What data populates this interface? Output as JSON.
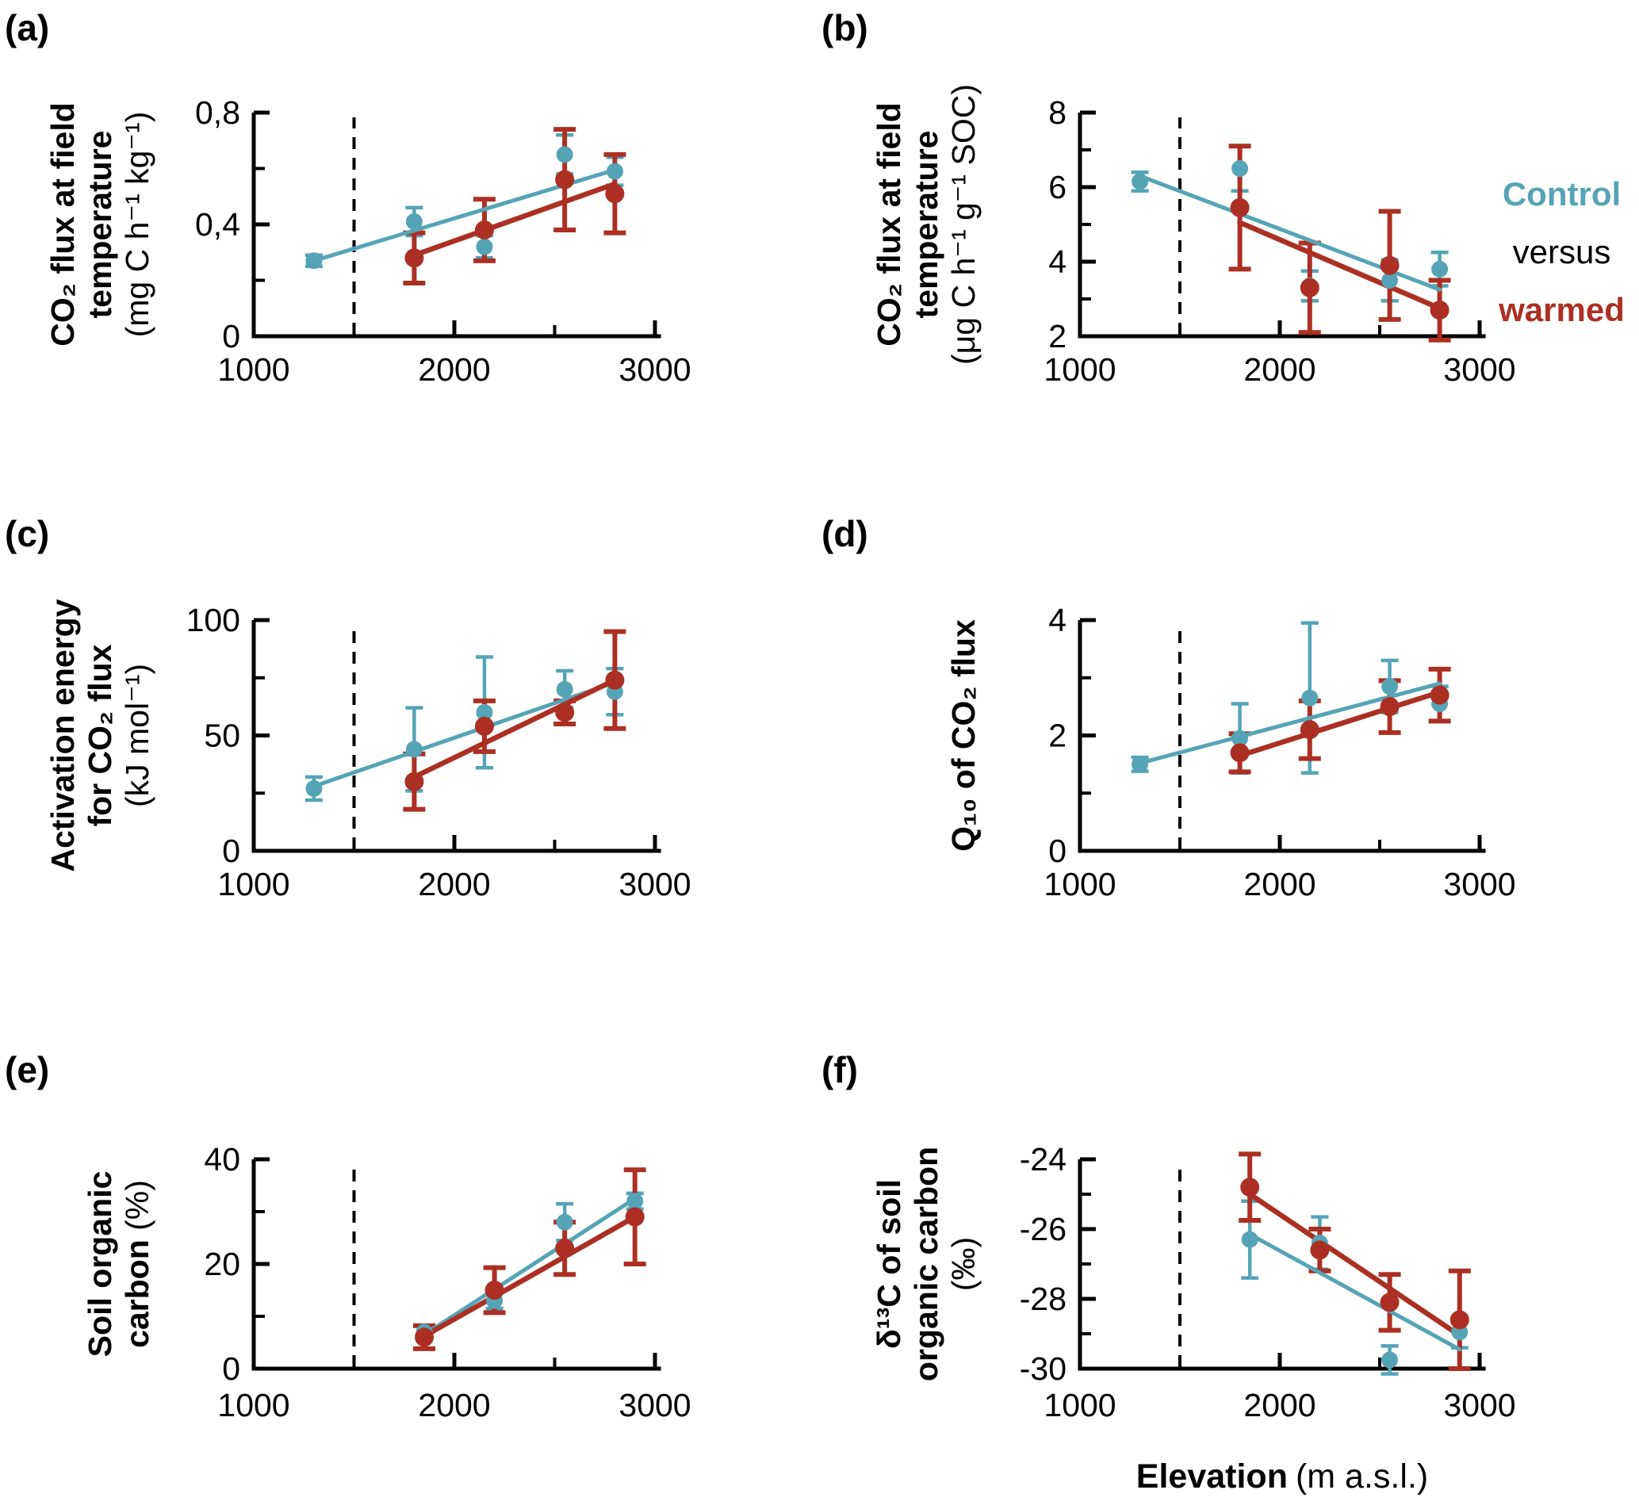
{
  "figure": {
    "legend": {
      "control_label": "Control",
      "versus_label": "versus",
      "warmed_label": "warmed"
    },
    "colors": {
      "control": "#55A4B6",
      "warmed": "#AB3023",
      "axis": "#000000"
    },
    "x_axis": {
      "title_bold": "Elevation",
      "title_unit": "(m a.s.l.)",
      "major_ticks": [
        1000,
        2000,
        3000
      ],
      "tick_labels": [
        "1000",
        "2000",
        "3000"
      ],
      "minor_ticks": [
        1500,
        2500
      ],
      "dashed_reference_x": 1500,
      "xlim": [
        1000,
        3030
      ]
    }
  },
  "chart_data": [
    {
      "panel_key": "a",
      "panel_label": "(a)",
      "type": "scatter",
      "ylabel_lines": [
        {
          "parts": [
            {
              "text": "CO₂ flux at field",
              "bold": true
            }
          ]
        },
        {
          "parts": [
            {
              "text": "temperature",
              "bold": true
            }
          ]
        },
        {
          "parts": [
            {
              "text": "(mg C h⁻¹ kg⁻¹)",
              "bold": false
            }
          ]
        }
      ],
      "ylim": [
        0,
        0.8
      ],
      "yticks": [
        {
          "value": 0,
          "label": "0"
        },
        {
          "value": 0.4,
          "label": "0,4"
        },
        {
          "value": 0.8,
          "label": "0,8"
        }
      ],
      "yminor": [
        0.2,
        0.6
      ],
      "series": [
        {
          "name": "Control",
          "color_key": "control",
          "x": [
            1300,
            1800,
            2150,
            2550,
            2800
          ],
          "y": [
            0.27,
            0.41,
            0.32,
            0.65,
            0.59
          ],
          "yerr": [
            0.02,
            0.05,
            0.04,
            0.07,
            0.05
          ],
          "trend": {
            "x": [
              1300,
              2800
            ],
            "y": [
              0.27,
              0.595
            ]
          }
        },
        {
          "name": "warmed",
          "color_key": "warmed",
          "x": [
            1800,
            2150,
            2550,
            2800
          ],
          "y": [
            0.28,
            0.38,
            0.56,
            0.51
          ],
          "yerr": [
            0.09,
            0.11,
            0.18,
            0.14
          ],
          "trend": {
            "x": [
              1800,
              2800
            ],
            "y": [
              0.29,
              0.545
            ]
          }
        }
      ]
    },
    {
      "panel_key": "b",
      "panel_label": "(b)",
      "type": "scatter",
      "ylabel_lines": [
        {
          "parts": [
            {
              "text": "CO₂ flux at field",
              "bold": true
            }
          ]
        },
        {
          "parts": [
            {
              "text": "temperature",
              "bold": true
            }
          ]
        },
        {
          "parts": [
            {
              "text": "(μg C h⁻¹ g⁻¹ SOC)",
              "bold": false
            }
          ]
        }
      ],
      "ylim": [
        2,
        8
      ],
      "yticks": [
        {
          "value": 2,
          "label": "2"
        },
        {
          "value": 4,
          "label": "4"
        },
        {
          "value": 6,
          "label": "6"
        },
        {
          "value": 8,
          "label": "8"
        }
      ],
      "yminor": [
        3,
        5,
        7
      ],
      "series": [
        {
          "name": "Control",
          "color_key": "control",
          "x": [
            1300,
            1800,
            2150,
            2550,
            2800
          ],
          "y": [
            6.15,
            6.5,
            3.35,
            3.5,
            3.8
          ],
          "yerr": [
            0.25,
            0.6,
            0.4,
            0.55,
            0.45
          ],
          "trend": {
            "x": [
              1300,
              2800
            ],
            "y": [
              6.3,
              3.25
            ]
          }
        },
        {
          "name": "warmed",
          "color_key": "warmed",
          "x": [
            1800,
            2150,
            2550,
            2800
          ],
          "y": [
            5.45,
            3.3,
            3.9,
            2.7
          ],
          "yerr": [
            1.65,
            1.2,
            1.45,
            0.8
          ],
          "trend": {
            "x": [
              1800,
              2800
            ],
            "y": [
              5.05,
              2.75
            ]
          }
        }
      ]
    },
    {
      "panel_key": "c",
      "panel_label": "(c)",
      "type": "scatter",
      "ylabel_lines": [
        {
          "parts": [
            {
              "text": "Activation energy",
              "bold": true
            }
          ]
        },
        {
          "parts": [
            {
              "text": "for CO₂ flux",
              "bold": true
            }
          ]
        },
        {
          "parts": [
            {
              "text": "(kJ mol⁻¹)",
              "bold": false
            }
          ]
        }
      ],
      "ylim": [
        0,
        100
      ],
      "yticks": [
        {
          "value": 0,
          "label": "0"
        },
        {
          "value": 50,
          "label": "50"
        },
        {
          "value": 100,
          "label": "100"
        }
      ],
      "yminor": [
        25,
        75
      ],
      "series": [
        {
          "name": "Control",
          "color_key": "control",
          "x": [
            1300,
            1800,
            2150,
            2550,
            2800
          ],
          "y": [
            27,
            44,
            60,
            70,
            69
          ],
          "yerr": [
            5,
            18,
            24,
            8,
            10
          ],
          "trend": {
            "x": [
              1300,
              2800
            ],
            "y": [
              28,
              73
            ]
          }
        },
        {
          "name": "warmed",
          "color_key": "warmed",
          "x": [
            1800,
            2150,
            2550,
            2800
          ],
          "y": [
            30,
            54,
            60,
            74
          ],
          "yerr": [
            12,
            11,
            5,
            21
          ],
          "trend": {
            "x": [
              1800,
              2800
            ],
            "y": [
              32,
              74
            ]
          }
        }
      ]
    },
    {
      "panel_key": "d",
      "panel_label": "(d)",
      "type": "scatter",
      "ylabel_lines": [
        {
          "parts": [
            {
              "text": "Q₁₀ of CO₂ flux",
              "bold": true
            }
          ]
        }
      ],
      "ylim": [
        0,
        4
      ],
      "yticks": [
        {
          "value": 0,
          "label": "0"
        },
        {
          "value": 2,
          "label": "2"
        },
        {
          "value": 4,
          "label": "4"
        }
      ],
      "yminor": [
        1,
        3
      ],
      "series": [
        {
          "name": "Control",
          "color_key": "control",
          "x": [
            1300,
            1800,
            2150,
            2550,
            2800
          ],
          "y": [
            1.5,
            1.95,
            2.65,
            2.85,
            2.55
          ],
          "yerr": [
            0.12,
            0.6,
            1.3,
            0.45,
            0.3
          ],
          "trend": {
            "x": [
              1300,
              2800
            ],
            "y": [
              1.52,
              2.9
            ]
          }
        },
        {
          "name": "warmed",
          "color_key": "warmed",
          "x": [
            1800,
            2150,
            2550,
            2800
          ],
          "y": [
            1.7,
            2.1,
            2.5,
            2.7
          ],
          "yerr": [
            0.33,
            0.5,
            0.45,
            0.45
          ],
          "trend": {
            "x": [
              1800,
              2800
            ],
            "y": [
              1.65,
              2.75
            ]
          }
        }
      ]
    },
    {
      "panel_key": "e",
      "panel_label": "(e)",
      "type": "scatter",
      "ylabel_lines": [
        {
          "parts": [
            {
              "text": "Soil organic",
              "bold": true
            }
          ]
        },
        {
          "parts": [
            {
              "text": "carbon ",
              "bold": true
            },
            {
              "text": "(%)",
              "bold": false
            }
          ]
        }
      ],
      "ylim": [
        0,
        40
      ],
      "yticks": [
        {
          "value": 0,
          "label": "0"
        },
        {
          "value": 20,
          "label": "20"
        },
        {
          "value": 40,
          "label": "40"
        }
      ],
      "yminor": [
        10,
        30
      ],
      "series": [
        {
          "name": "Control",
          "color_key": "control",
          "x": [
            1850,
            2200,
            2550,
            2900
          ],
          "y": [
            7,
            13,
            28,
            32
          ],
          "yerr": [
            1.2,
            1.5,
            3.5,
            1.5
          ],
          "trend": {
            "x": [
              1850,
              2900
            ],
            "y": [
              6.5,
              32.5
            ]
          }
        },
        {
          "name": "warmed",
          "color_key": "warmed",
          "x": [
            1850,
            2200,
            2550,
            2900
          ],
          "y": [
            6,
            15,
            23,
            29
          ],
          "yerr": [
            2.2,
            4.3,
            5,
            9
          ],
          "trend": {
            "x": [
              1850,
              2900
            ],
            "y": [
              6.2,
              29
            ]
          }
        }
      ]
    },
    {
      "panel_key": "f",
      "panel_label": "(f)",
      "type": "scatter",
      "ylabel_lines": [
        {
          "parts": [
            {
              "text": "δ¹³C of soil",
              "bold": true
            }
          ]
        },
        {
          "parts": [
            {
              "text": "organic carbon",
              "bold": true
            }
          ]
        },
        {
          "parts": [
            {
              "text": "(‰)",
              "bold": false
            }
          ]
        }
      ],
      "ylim": [
        -30,
        -24
      ],
      "yticks": [
        {
          "value": -30,
          "label": "-30"
        },
        {
          "value": -28,
          "label": "-28"
        },
        {
          "value": -26,
          "label": "-26"
        },
        {
          "value": -24,
          "label": "-24"
        }
      ],
      "yminor": [
        -29,
        -27,
        -25
      ],
      "series": [
        {
          "name": "Control",
          "color_key": "control",
          "x": [
            1850,
            2200,
            2550,
            2900
          ],
          "y": [
            -26.3,
            -26.4,
            -29.75,
            -28.95
          ],
          "yerr": [
            1.1,
            0.75,
            0.4,
            0.45
          ],
          "trend": {
            "x": [
              1850,
              2900
            ],
            "y": [
              -26.15,
              -29.45
            ]
          }
        },
        {
          "name": "warmed",
          "color_key": "warmed",
          "x": [
            1850,
            2200,
            2550,
            2900
          ],
          "y": [
            -24.8,
            -26.6,
            -28.1,
            -28.6
          ],
          "yerr": [
            0.95,
            0.6,
            0.8,
            1.4
          ],
          "trend": {
            "x": [
              1850,
              2900
            ],
            "y": [
              -25.0,
              -29.05
            ]
          }
        }
      ]
    }
  ]
}
